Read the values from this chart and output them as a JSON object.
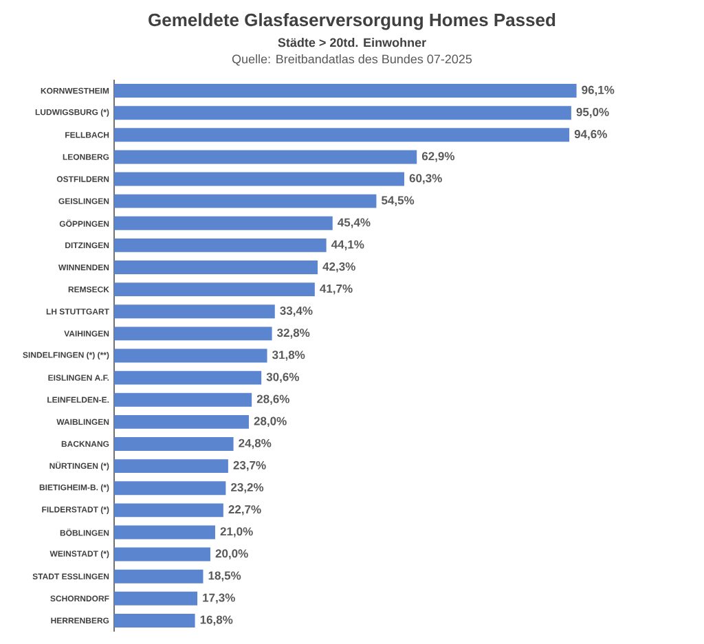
{
  "chart_data": {
    "type": "bar",
    "orientation": "horizontal",
    "title": "Gemeldete Glasfaserversorgung Homes Passed",
    "subtitle": "Städte > 20td. Einwohner",
    "annotations": [
      "Quelle: Breitbandatlas des Bundes 07-2025"
    ],
    "categories": [
      "KORNWESTHEIM",
      "LUDWIGSBURG (*)",
      "FELLBACH",
      "LEONBERG",
      "OSTFILDERN",
      "GEISLINGEN",
      "GÖPPINGEN",
      "DITZINGEN",
      "WINNENDEN",
      "REMSECK",
      "LH STUTTGART",
      "VAIHINGEN",
      "SINDELFINGEN (*) (**)",
      "EISLINGEN A.F.",
      "LEINFELDEN-E.",
      "WAIBLINGEN",
      "BACKNANG",
      "NÜRTINGEN (*)",
      "BIETIGHEIM-B. (*)",
      "FILDERSTADT (*)",
      "BÖBLINGEN",
      "WEINSTADT (*)",
      "STADT ESSLINGEN",
      "SCHORNDORF",
      "HERRENBERG"
    ],
    "values": [
      96.1,
      95.0,
      94.6,
      62.9,
      60.3,
      54.5,
      45.4,
      44.1,
      42.3,
      41.7,
      33.4,
      32.8,
      31.8,
      30.6,
      28.6,
      28.0,
      24.8,
      23.7,
      23.2,
      22.7,
      21.0,
      20.0,
      18.5,
      17.3,
      16.8
    ],
    "value_labels": [
      "96,1%",
      "95,0%",
      "94,6%",
      "62,9%",
      "60,3%",
      "54,5%",
      "45,4%",
      "44,1%",
      "42,3%",
      "41,7%",
      "33,4%",
      "32,8%",
      "31,8%",
      "30,6%",
      "28,6%",
      "28,0%",
      "24,8%",
      "23,7%",
      "23,2%",
      "22,7%",
      "21,0%",
      "20,0%",
      "18,5%",
      "17,3%",
      "16,8%"
    ],
    "color": "#5b85cf"
  }
}
